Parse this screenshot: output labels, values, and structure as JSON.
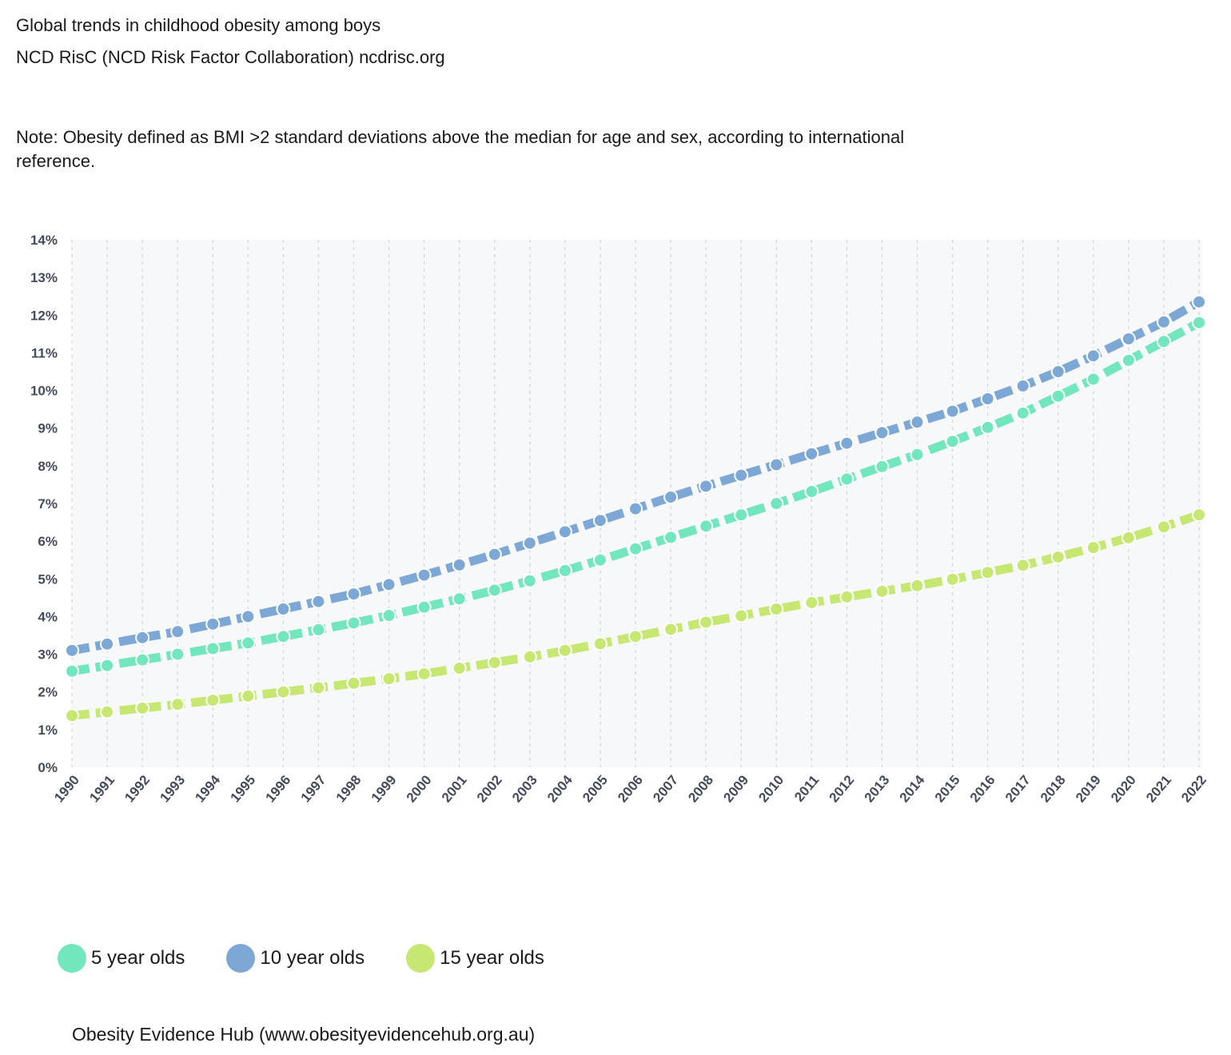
{
  "title": "Global trends in childhood obesity among boys",
  "source": "NCD RisC (NCD Risk Factor Collaboration) ncdrisc.org",
  "note": "Note: Obesity defined as BMI >2 standard deviations above the median for age and sex, according to international reference.",
  "footer": "Obesity Evidence Hub (www.obesityevidencehub.org.au)",
  "colors": {
    "plot_bg": "#f7f8fa",
    "grid": "#d3d6dc"
  },
  "chart_data": {
    "type": "line",
    "title": "Global trends in childhood obesity among boys",
    "xlabel": "",
    "ylabel": "",
    "ylim": [
      0,
      14
    ],
    "yticks": [
      "0%",
      "1%",
      "2%",
      "3%",
      "4%",
      "5%",
      "6%",
      "7%",
      "8%",
      "9%",
      "10%",
      "11%",
      "12%",
      "13%",
      "14%"
    ],
    "grid": true,
    "legend": "bottom-left",
    "x": [
      "1990",
      "1991",
      "1992",
      "1993",
      "1994",
      "1995",
      "1996",
      "1997",
      "1998",
      "1999",
      "2000",
      "2001",
      "2002",
      "2003",
      "2004",
      "2005",
      "2006",
      "2007",
      "2008",
      "2009",
      "2010",
      "2011",
      "2012",
      "2013",
      "2014",
      "2015",
      "2016",
      "2017",
      "2018",
      "2019",
      "2020",
      "2021",
      "2022"
    ],
    "series": [
      {
        "name": "5 year olds",
        "color": "#72e6bc",
        "values": [
          2.55,
          2.7,
          2.85,
          3.0,
          3.15,
          3.3,
          3.47,
          3.65,
          3.83,
          4.03,
          4.25,
          4.47,
          4.7,
          4.95,
          5.22,
          5.5,
          5.8,
          6.1,
          6.4,
          6.7,
          7.0,
          7.32,
          7.65,
          7.98,
          8.3,
          8.65,
          9.02,
          9.4,
          9.85,
          10.3,
          10.8,
          11.3,
          11.8
        ]
      },
      {
        "name": "10 year olds",
        "color": "#7da8d6",
        "values": [
          3.1,
          3.27,
          3.44,
          3.6,
          3.8,
          4.0,
          4.2,
          4.4,
          4.6,
          4.85,
          5.1,
          5.37,
          5.65,
          5.95,
          6.25,
          6.55,
          6.86,
          7.17,
          7.46,
          7.75,
          8.03,
          8.32,
          8.6,
          8.88,
          9.16,
          9.45,
          9.78,
          10.12,
          10.5,
          10.92,
          11.37,
          11.82,
          12.35
        ]
      },
      {
        "name": "15 year olds",
        "color": "#c6e872",
        "values": [
          1.37,
          1.47,
          1.57,
          1.67,
          1.78,
          1.89,
          2.0,
          2.11,
          2.23,
          2.35,
          2.48,
          2.63,
          2.78,
          2.93,
          3.1,
          3.28,
          3.47,
          3.66,
          3.85,
          4.02,
          4.2,
          4.37,
          4.52,
          4.67,
          4.82,
          4.99,
          5.17,
          5.36,
          5.58,
          5.83,
          6.09,
          6.38,
          6.7
        ]
      }
    ]
  }
}
